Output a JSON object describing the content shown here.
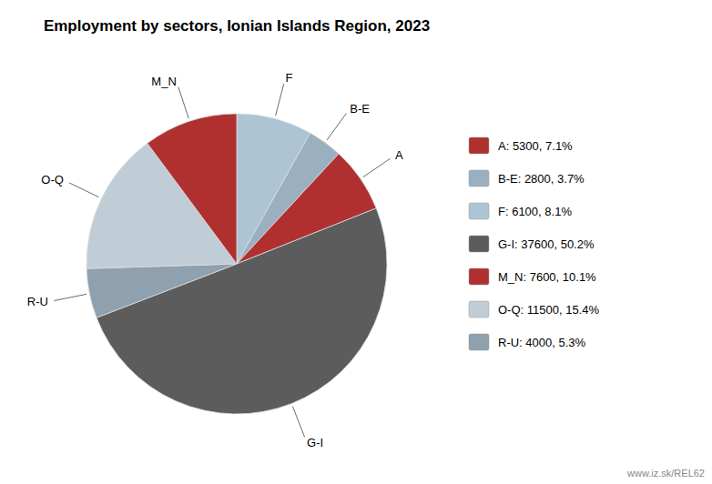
{
  "chart_data": {
    "type": "pie",
    "title": "Employment by sectors, Ionian Islands Region, 2023",
    "categories": [
      "F",
      "B-E",
      "A",
      "G-I",
      "R-U",
      "O-Q",
      "M_N"
    ],
    "values": [
      6100,
      2800,
      5300,
      37600,
      4000,
      11500,
      7600
    ],
    "colors": [
      "#adc4d4",
      "#9ab0c0",
      "#b03030",
      "#5c5c5c",
      "#8fa0ae",
      "#c0cdd6",
      "#b03030"
    ],
    "legend": "right",
    "legend_entries": [
      {
        "label": "A: 5300, 7.1%",
        "color": "#b03030"
      },
      {
        "label": "B-E: 2800, 3.7%",
        "color": "#9ab0c0"
      },
      {
        "label": "F: 6100, 8.1%",
        "color": "#adc4d4"
      },
      {
        "label": "G-I: 37600, 50.2%",
        "color": "#5c5c5c"
      },
      {
        "label": "M_N: 7600, 10.1%",
        "color": "#b03030"
      },
      {
        "label": "O-Q: 11500, 15.4%",
        "color": "#c0cdd6"
      },
      {
        "label": "R-U: 4000, 5.3%",
        "color": "#8fa0ae"
      }
    ],
    "annotations": [
      {
        "text": "www.iz.sk/REL62"
      }
    ]
  }
}
